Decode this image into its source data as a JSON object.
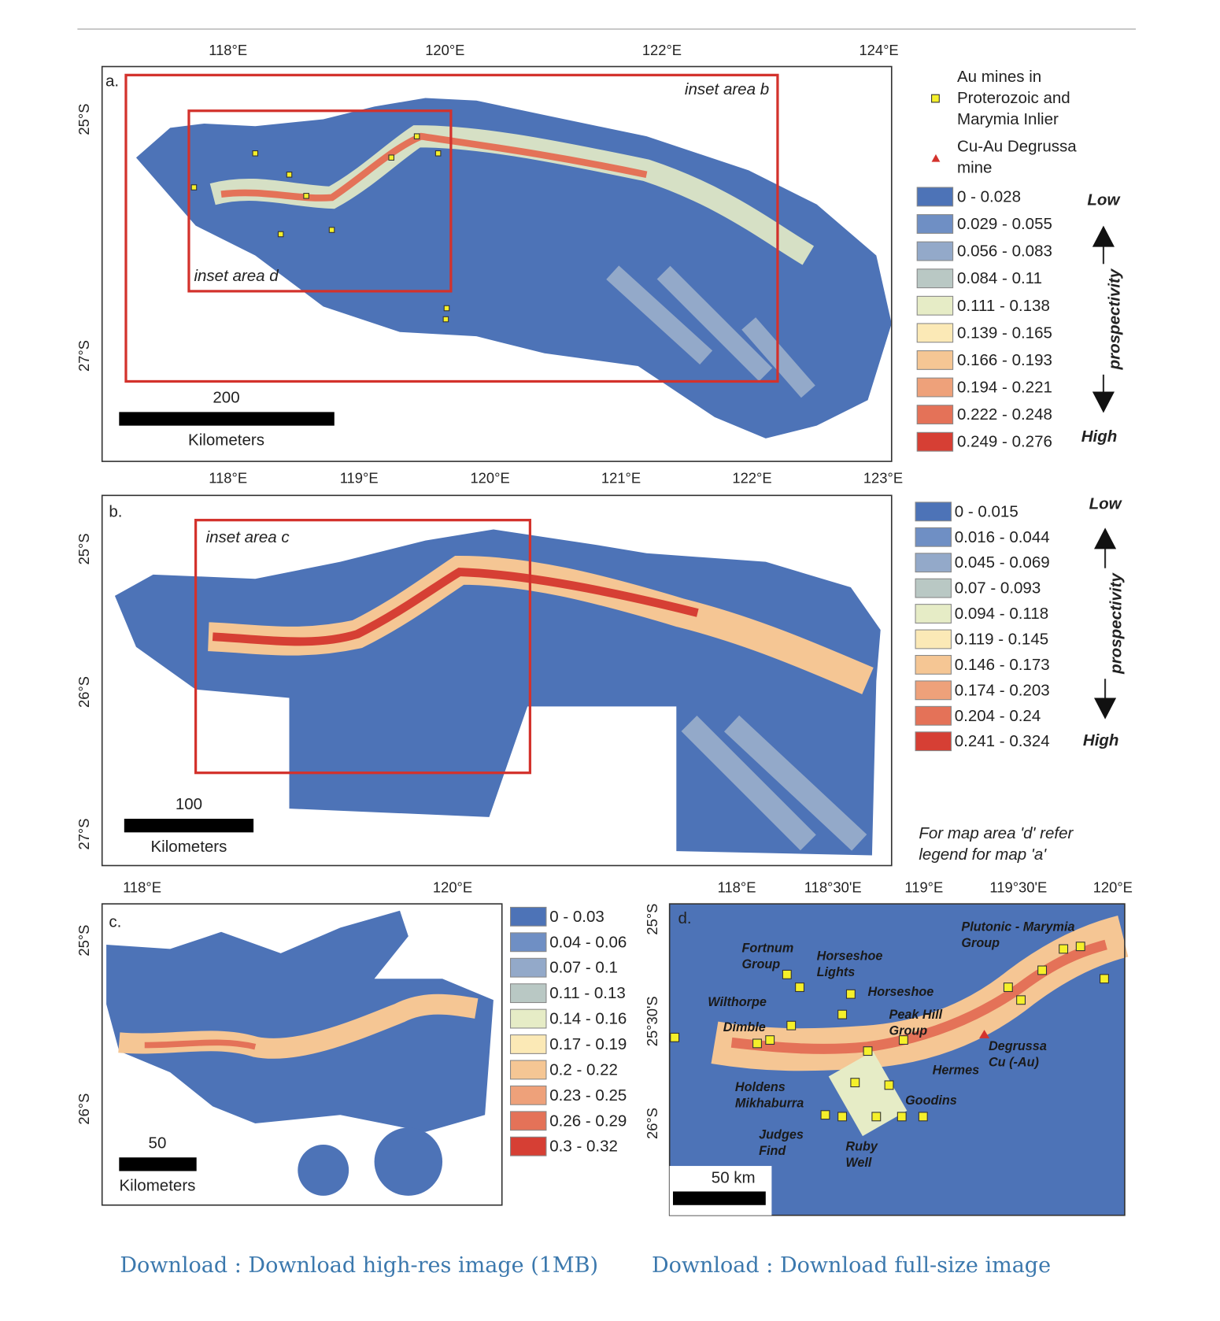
{
  "panel_a": {
    "label": "a.",
    "x_ticks": [
      "118°E",
      "120°E",
      "122°E",
      "124°E"
    ],
    "y_ticks": [
      "25°S",
      "27°S"
    ],
    "insets": [
      "inset area b",
      "inset area d"
    ],
    "scale_value": "200",
    "scale_unit": "Kilometers",
    "legend": {
      "mines": [
        "Au mines in",
        "Proterozoic and",
        "Marymia Inlier"
      ],
      "degrussa": [
        "Cu-Au Degrussa",
        "mine"
      ],
      "classes": [
        "0 - 0.028",
        "0.029 - 0.055",
        "0.056 - 0.083",
        "0.084 - 0.11",
        "0.111 - 0.138",
        "0.139 - 0.165",
        "0.166 - 0.193",
        "0.194 - 0.221",
        "0.222 - 0.248",
        "0.249 - 0.276"
      ],
      "low": "Low",
      "high": "High",
      "axis": "prospectivity"
    }
  },
  "panel_b": {
    "label": "b.",
    "x_ticks": [
      "118°E",
      "119°E",
      "120°E",
      "121°E",
      "122°E",
      "123°E"
    ],
    "y_ticks": [
      "25°S",
      "26°S",
      "27°S"
    ],
    "insets": [
      "inset area c"
    ],
    "scale_value": "100",
    "scale_unit": "Kilometers",
    "legend": {
      "classes": [
        "0 - 0.015",
        "0.016 - 0.044",
        "0.045 - 0.069",
        "0.07 - 0.093",
        "0.094 - 0.118",
        "0.119 - 0.145",
        "0.146 - 0.173",
        "0.174 - 0.203",
        "0.204 - 0.24",
        "0.241 - 0.324"
      ],
      "low": "Low",
      "high": "High",
      "axis": "prospectivity"
    },
    "note": [
      "For map area 'd' refer",
      "legend for map 'a'"
    ]
  },
  "panel_c": {
    "label": "c.",
    "x_ticks": [
      "118°E",
      "120°E"
    ],
    "y_ticks": [
      "25°S",
      "26°S"
    ],
    "scale_value": "50",
    "scale_unit": "Kilometers",
    "legend": {
      "classes": [
        "0 - 0.03",
        "0.04 - 0.06",
        "0.07 - 0.1",
        "0.11 - 0.13",
        "0.14 - 0.16",
        "0.17 - 0.19",
        "0.2 - 0.22",
        "0.23 - 0.25",
        "0.26 - 0.29",
        "0.3 - 0.32"
      ]
    }
  },
  "panel_d": {
    "label": "d.",
    "x_ticks": [
      "118°E",
      "118°30'E",
      "119°E",
      "119°30'E",
      "120°E"
    ],
    "y_ticks": [
      "25°S",
      "25°30'S",
      "26°S"
    ],
    "scale_value": "50 km",
    "annotations": [
      [
        "Plutonic - Marymia",
        "Group"
      ],
      [
        "Fortnum",
        "Group"
      ],
      [
        "Horseshoe",
        "Lights"
      ],
      [
        "Horseshoe"
      ],
      [
        "Wilthorpe"
      ],
      [
        "Dimble"
      ],
      [
        "Peak Hill",
        "Group"
      ],
      [
        "Hermes"
      ],
      [
        "Degrussa",
        "Cu (-Au)"
      ],
      [
        "Holdens",
        "Mikhaburra"
      ],
      [
        "Goodins"
      ],
      [
        "Judges",
        "Find"
      ],
      [
        "Ruby",
        "Well"
      ]
    ]
  },
  "class_colors": [
    "#4d73b7",
    "#6f8fc4",
    "#93a9c9",
    "#b9c8c4",
    "#e6ecc6",
    "#fbe9b6",
    "#f5c694",
    "#eea17a",
    "#e47258",
    "#d63f34"
  ],
  "links": [
    "Download : Download high-res image (1MB)",
    "Download : Download full-size image"
  ]
}
